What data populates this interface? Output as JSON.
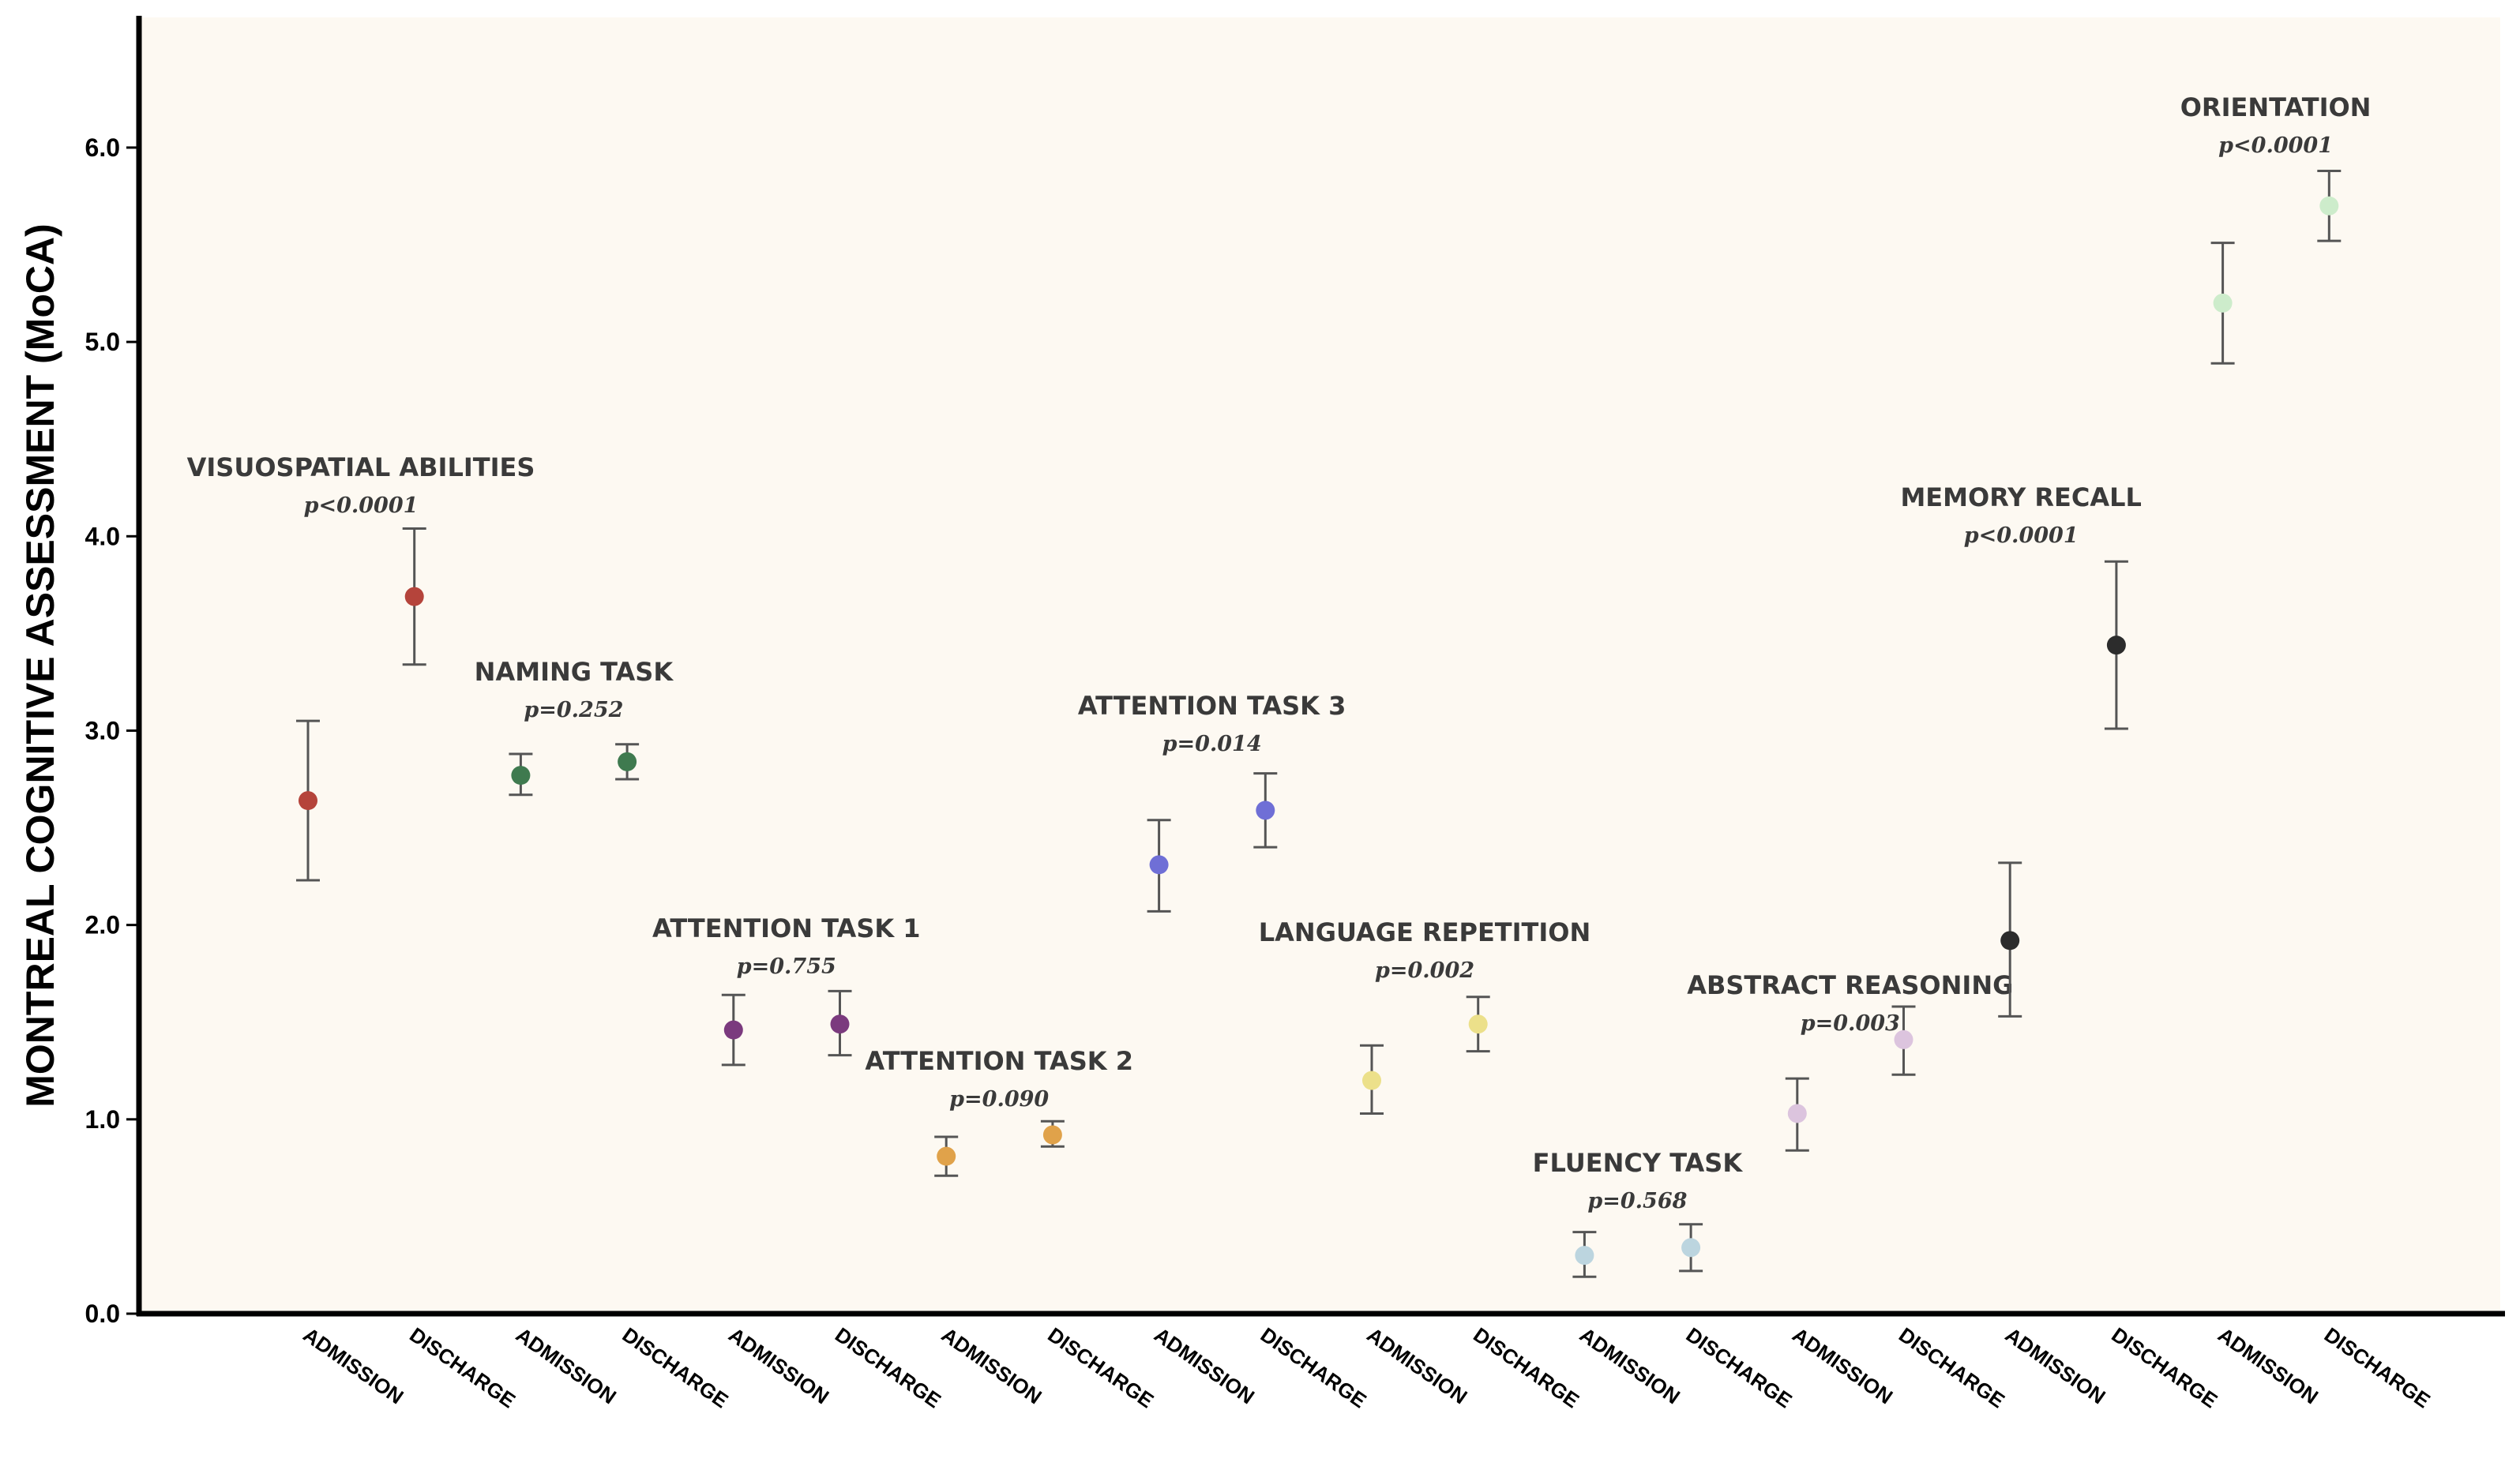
{
  "chart_data": {
    "type": "scatter",
    "ylabel": "MONTREAL COGNITIVE ASSESSMENT (MoCA)",
    "xlabel": "",
    "ylim": [
      0,
      6.67
    ],
    "yticks": [
      "0.0",
      "1.0",
      "2.0",
      "3.0",
      "4.0",
      "5.0",
      "6.0"
    ],
    "categories": [
      "ADMISSION",
      "DISCHARGE",
      "ADMISSION",
      "DISCHARGE",
      "ADMISSION",
      "DISCHARGE",
      "ADMISSION",
      "DISCHARGE",
      "ADMISSION",
      "DISCHARGE",
      "ADMISSION",
      "DISCHARGE",
      "ADMISSION",
      "DISCHARGE",
      "ADMISSION",
      "DISCHARGE",
      "ADMISSION",
      "DISCHARGE",
      "ADMISSION",
      "DISCHARGE"
    ],
    "groups": [
      {
        "name": "VISUOSPATIAL ABILITIES",
        "p": "p<0.0001",
        "color": "#b5443b",
        "points": [
          {
            "mean": 2.64,
            "low": 2.23,
            "high": 3.05
          },
          {
            "mean": 3.69,
            "low": 3.34,
            "high": 4.04
          }
        ]
      },
      {
        "name": "NAMING TASK",
        "p": "p=0.252",
        "color": "#3f7a4f",
        "points": [
          {
            "mean": 2.77,
            "low": 2.67,
            "high": 2.88
          },
          {
            "mean": 2.84,
            "low": 2.75,
            "high": 2.93
          }
        ]
      },
      {
        "name": "ATTENTION TASK 1",
        "p": "p=0.755",
        "color": "#7b3a7e",
        "points": [
          {
            "mean": 1.46,
            "low": 1.28,
            "high": 1.64
          },
          {
            "mean": 1.49,
            "low": 1.33,
            "high": 1.66
          }
        ]
      },
      {
        "name": "ATTENTION TASK 2",
        "p": "p=0.090",
        "color": "#e0a24a",
        "points": [
          {
            "mean": 0.81,
            "low": 0.71,
            "high": 0.91
          },
          {
            "mean": 0.92,
            "low": 0.86,
            "high": 0.99
          }
        ]
      },
      {
        "name": "ATTENTION TASK 3",
        "p": "p=0.014",
        "color": "#6f6fd6",
        "points": [
          {
            "mean": 2.31,
            "low": 2.07,
            "high": 2.54
          },
          {
            "mean": 2.59,
            "low": 2.4,
            "high": 2.78
          }
        ]
      },
      {
        "name": "LANGUAGE REPETITION",
        "p": "p=0.002",
        "color": "#ece08a",
        "points": [
          {
            "mean": 1.2,
            "low": 1.03,
            "high": 1.38
          },
          {
            "mean": 1.49,
            "low": 1.35,
            "high": 1.63
          }
        ]
      },
      {
        "name": "FLUENCY TASK",
        "p": "p=0.568",
        "color": "#bcd5df",
        "points": [
          {
            "mean": 0.3,
            "low": 0.19,
            "high": 0.42
          },
          {
            "mean": 0.34,
            "low": 0.22,
            "high": 0.46
          }
        ]
      },
      {
        "name": "ABSTRACT REASONING",
        "p": "p=0.003",
        "color": "#dcc4de",
        "points": [
          {
            "mean": 1.03,
            "low": 0.84,
            "high": 1.21
          },
          {
            "mean": 1.41,
            "low": 1.23,
            "high": 1.58
          }
        ]
      },
      {
        "name": "MEMORY RECALL",
        "p": "p<0.0001",
        "color": "#2c2c2c",
        "points": [
          {
            "mean": 1.92,
            "low": 1.53,
            "high": 2.32
          },
          {
            "mean": 3.44,
            "low": 3.01,
            "high": 3.87
          }
        ]
      },
      {
        "name": "ORIENTATION",
        "p": "p<0.0001",
        "color": "#cdeccb",
        "points": [
          {
            "mean": 5.2,
            "low": 4.89,
            "high": 5.51
          },
          {
            "mean": 5.7,
            "low": 5.52,
            "high": 5.88
          }
        ]
      }
    ],
    "grid": false,
    "legend": "none"
  }
}
